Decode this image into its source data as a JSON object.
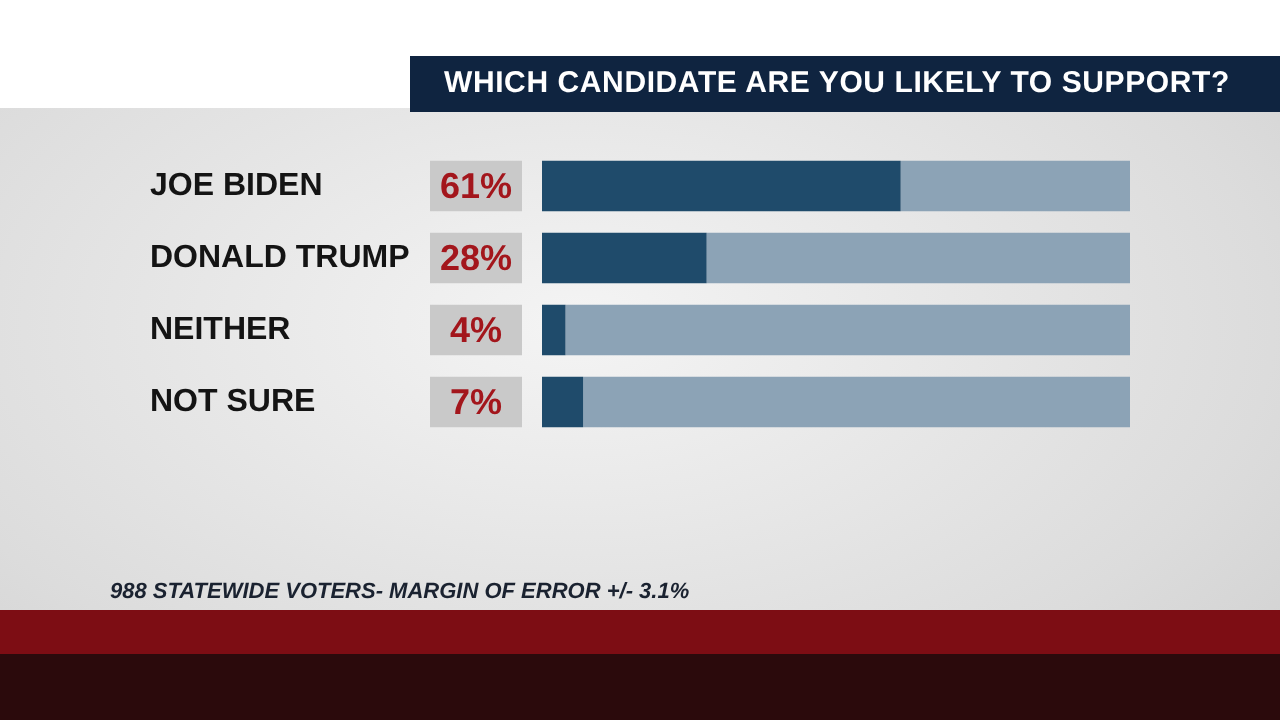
{
  "chart_data": {
    "type": "bar",
    "orientation": "horizontal",
    "stacked": true,
    "title": "WHICH CANDIDATE ARE YOU LIKELY TO SUPPORT?",
    "categories": [
      "JOE BIDEN",
      "DONALD TRUMP",
      "NEITHER",
      "NOT SURE"
    ],
    "series": [
      {
        "color": "#1f4b6b",
        "values": [
          61,
          28,
          4,
          7
        ],
        "value_labels": [
          "61%",
          "28%",
          "4%",
          "7%"
        ]
      },
      {
        "color": "#8ca3b6",
        "values": [
          39,
          72,
          96,
          93
        ]
      }
    ],
    "xlim": [
      0,
      100
    ],
    "tick_labels": "y",
    "grid": false,
    "legend": false,
    "annotations": [
      "988 STATEWIDE VOTERS- MARGIN OF ERROR +/- 3.1%"
    ]
  }
}
